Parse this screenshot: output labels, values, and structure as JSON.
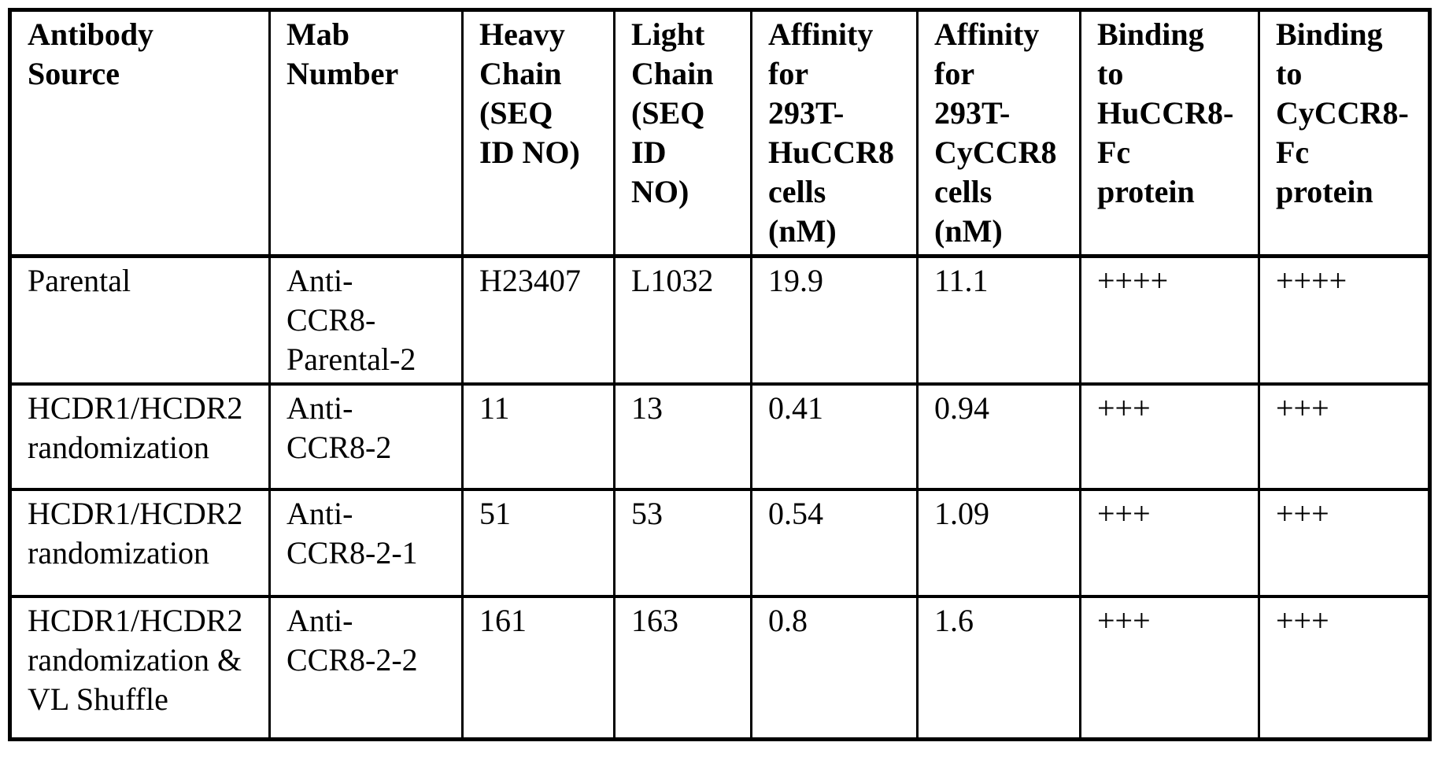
{
  "colors": {
    "border": "#000000",
    "text": "#000000",
    "background": "#ffffff"
  },
  "table": {
    "headers": [
      "Antibody\nSource",
      "Mab\nNumber",
      "Heavy\nChain\n(SEQ\nID NO)",
      "Light\nChain\n(SEQ\nID\nNO)",
      "Affinity\nfor\n293T-\nHuCCR8\ncells\n(nM)",
      "Affinity\nfor\n293T-\nCyCCR8\ncells\n(nM)",
      "Binding\nto\nHuCCR8-\nFc\nprotein",
      "Binding\nto\nCyCCR8-\nFc\nprotein"
    ],
    "rows": [
      [
        "Parental",
        "Anti-\nCCR8-\nParental-2",
        "H23407",
        "L1032",
        "19.9",
        "11.1",
        "++++",
        "++++"
      ],
      [
        "HCDR1/HCDR2\nrandomization",
        "Anti-\nCCR8-2",
        "11",
        "13",
        "0.41",
        "0.94",
        "+++",
        "+++"
      ],
      [
        "HCDR1/HCDR2\nrandomization",
        "Anti-\nCCR8-2-1",
        "51",
        "53",
        "0.54",
        "1.09",
        "+++",
        "+++"
      ],
      [
        "HCDR1/HCDR2\nrandomization &\nVL Shuffle",
        "Anti-\nCCR8-2-2",
        "161",
        "163",
        "0.8",
        "1.6",
        "+++",
        "+++"
      ]
    ]
  }
}
